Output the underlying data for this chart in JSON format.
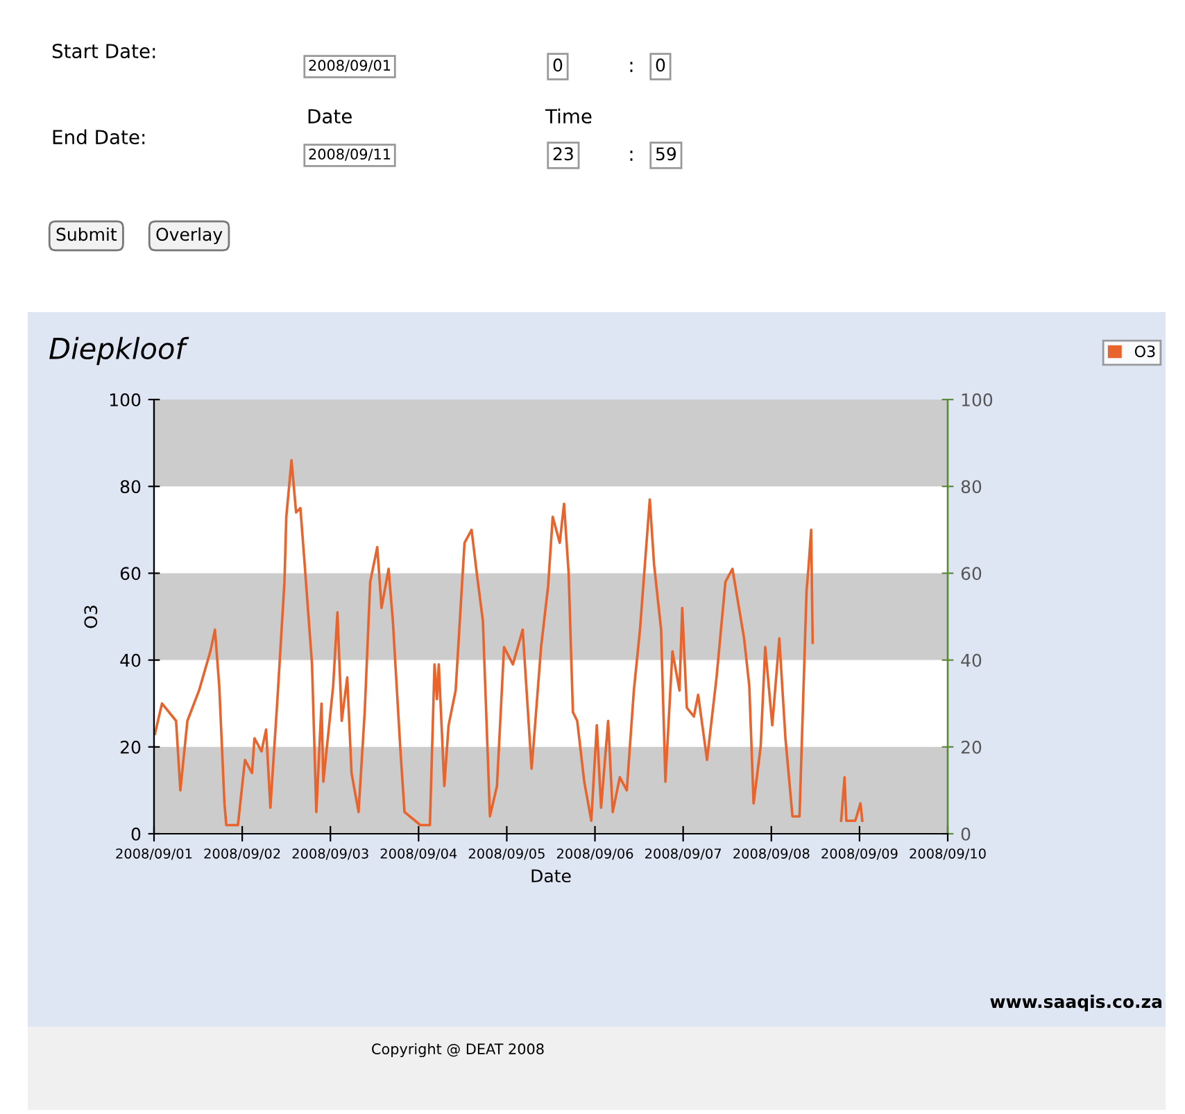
{
  "chart_data": {
    "type": "line",
    "title": "Diepkloof",
    "xlabel": "Date",
    "ylabel": "O3",
    "annotations": [
      "Start Date:",
      "End Date:",
      "Date",
      "Time",
      "2008/09/01",
      "0",
      ":",
      "0",
      "2008/09/11",
      "23",
      ":",
      "59",
      "Submit",
      "Overlay",
      "www.saaqis.co.za",
      "Copyright @ DEAT 2008"
    ],
    "xlim": [
      "2008-09-01",
      "2008-09-10"
    ],
    "xticks": [
      {
        "value": "2008-09-01",
        "label": "2008/09/01"
      },
      {
        "value": "2008-09-02",
        "label": "2008/09/02"
      },
      {
        "value": "2008-09-03",
        "label": "2008/09/03"
      },
      {
        "value": "2008-09-04",
        "label": "2008/09/04"
      },
      {
        "value": "2008-09-05",
        "label": "2008/09/05"
      },
      {
        "value": "2008-09-06",
        "label": "2008/09/06"
      },
      {
        "value": "2008-09-07",
        "label": "2008/09/07"
      },
      {
        "value": "2008-09-08",
        "label": "2008/09/08"
      },
      {
        "value": "2008-09-09",
        "label": "2008/09/09"
      },
      {
        "value": "2008-09-10",
        "label": "2008/09/10"
      }
    ],
    "ylim": [
      0,
      100
    ],
    "yticks": [
      0,
      20,
      40,
      60,
      80,
      100
    ],
    "y2lim": [
      0,
      100
    ],
    "y2ticks": [
      0,
      20,
      40,
      60,
      80,
      100
    ],
    "bands": [
      {
        "axis": "y",
        "from": 0,
        "to": 20,
        "color": "#cccccc"
      },
      {
        "axis": "y",
        "from": 40,
        "to": 60,
        "color": "#cccccc"
      },
      {
        "axis": "y",
        "from": 80,
        "to": 100,
        "color": "#cccccc"
      }
    ],
    "legend": "top right",
    "grid": false,
    "marker": "none",
    "line_style": "solid",
    "series": [
      {
        "name": "O3",
        "color": "#e8642c",
        "x": [
          "2008-09-01T00:15",
          "2008-09-01T02:10",
          "2008-09-01T06:00",
          "2008-09-01T07:10",
          "2008-09-01T09:05",
          "2008-09-01T12:15",
          "2008-09-01T15:20",
          "2008-09-01T16:35",
          "2008-09-01T17:45",
          "2008-09-01T19:10",
          "2008-09-01T19:40",
          "2008-09-01T22:50",
          "2008-09-02T00:45",
          "2008-09-02T02:40",
          "2008-09-02T03:20",
          "2008-09-02T05:15",
          "2008-09-02T06:30",
          "2008-09-02T07:40",
          "2008-09-02T09:35",
          "2008-09-02T11:30",
          "2008-09-02T12:00",
          "2008-09-02T13:25",
          "2008-09-02T14:40",
          "2008-09-02T15:50",
          "2008-09-02T17:00",
          "2008-09-02T19:00",
          "2008-09-02T20:10",
          "2008-09-02T21:35",
          "2008-09-02T22:05",
          "2008-09-03T00:45",
          "2008-09-03T01:55",
          "2008-09-03T03:05",
          "2008-09-03T04:35",
          "2008-09-03T05:45",
          "2008-09-03T07:40",
          "2008-09-03T09:20",
          "2008-09-03T10:50",
          "2008-09-03T12:45",
          "2008-09-03T13:55",
          "2008-09-03T15:50",
          "2008-09-03T17:00",
          "2008-09-03T19:00",
          "2008-09-03T20:10",
          "2008-09-04T00:30",
          "2008-09-04T03:05",
          "2008-09-04T04:20",
          "2008-09-04T05:00",
          "2008-09-04T05:30",
          "2008-09-04T07:00",
          "2008-09-04T08:10",
          "2008-09-04T10:05",
          "2008-09-04T12:30",
          "2008-09-04T14:25",
          "2008-09-04T15:50",
          "2008-09-04T17:30",
          "2008-09-04T19:25",
          "2008-09-04T21:20",
          "2008-09-04T23:15",
          "2008-09-05T01:40",
          "2008-09-05T04:20",
          "2008-09-05T06:45",
          "2008-09-05T07:25",
          "2008-09-05T09:20",
          "2008-09-05T11:15",
          "2008-09-05T12:30",
          "2008-09-05T14:25",
          "2008-09-05T15:35",
          "2008-09-05T16:50",
          "2008-09-05T18:00",
          "2008-09-05T19:10",
          "2008-09-05T21:05",
          "2008-09-05T23:00",
          "2008-09-06T00:30",
          "2008-09-06T01:40",
          "2008-09-06T03:35",
          "2008-09-06T04:50",
          "2008-09-06T06:45",
          "2008-09-06T08:40",
          "2008-09-06T10:35",
          "2008-09-06T12:15",
          "2008-09-06T14:55",
          "2008-09-06T16:05",
          "2008-09-06T18:00",
          "2008-09-06T19:10",
          "2008-09-06T21:05",
          "2008-09-06T23:00",
          "2008-09-06T23:45",
          "2008-09-07T01:00",
          "2008-09-07T02:55",
          "2008-09-07T04:05",
          "2008-09-07T06:30",
          "2008-09-07T09:05",
          "2008-09-07T11:30",
          "2008-09-07T13:25",
          "2008-09-07T16:35",
          "2008-09-07T18:00",
          "2008-09-07T19:10",
          "2008-09-07T21:05",
          "2008-09-07T22:20",
          "2008-09-08T00:15",
          "2008-09-08T02:10",
          "2008-09-08T03:50",
          "2008-09-08T05:45",
          "2008-09-08T07:40",
          "2008-09-08T09:35",
          "2008-09-08T10:05",
          "2008-09-08T10:50",
          "2008-09-08T11:15",
          "2008-09-08T14:00",
          "2008-09-08T19:00",
          "2008-09-08T19:55",
          "2008-09-08T20:25",
          "2008-09-08T22:50",
          "2008-09-09T00:15",
          "2008-09-09T00:45"
        ],
        "values": [
          23,
          30,
          26,
          10,
          26,
          33,
          42,
          47,
          34,
          7,
          2,
          2,
          17,
          14,
          22,
          19,
          24,
          6,
          31,
          58,
          73,
          86,
          74,
          75,
          62,
          39,
          5,
          30,
          12,
          34,
          51,
          26,
          36,
          14,
          5,
          28,
          58,
          66,
          52,
          61,
          49,
          20,
          5,
          2,
          2,
          39,
          31,
          39,
          11,
          25,
          33,
          67,
          70,
          60,
          49,
          4,
          11,
          43,
          39,
          47,
          15,
          22,
          43,
          57,
          73,
          67,
          76,
          60,
          28,
          26,
          12,
          3,
          25,
          6,
          26,
          5,
          13,
          10,
          33,
          47,
          77,
          62,
          47,
          12,
          42,
          33,
          52,
          29,
          27,
          32,
          17,
          36,
          58,
          61,
          45,
          34,
          7,
          20,
          43,
          25,
          45,
          22,
          4,
          4,
          56,
          61,
          70,
          44,
          null,
          3,
          13,
          3,
          3,
          7,
          3
        ]
      }
    ]
  }
}
